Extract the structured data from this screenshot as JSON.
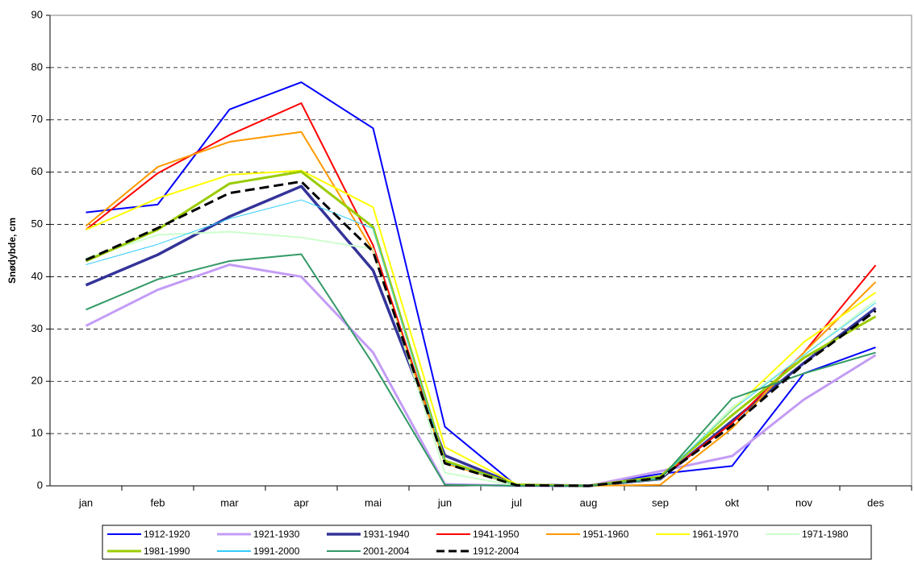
{
  "chart_data": {
    "type": "line",
    "y_label": "Snødybde, cm",
    "categories": [
      "jan",
      "feb",
      "mar",
      "apr",
      "mai",
      "jun",
      "jul",
      "aug",
      "sep",
      "okt",
      "nov",
      "des"
    ],
    "ylim": [
      0,
      90
    ],
    "yticks": [
      0,
      10,
      20,
      30,
      40,
      50,
      60,
      70,
      80,
      90
    ],
    "grid": true,
    "series": [
      {
        "name": "1912-1920",
        "color": "#0000ff",
        "width": 2,
        "values": [
          52.3,
          53.8,
          72,
          77.2,
          68.4,
          11.3,
          0,
          0,
          2.3,
          3.8,
          21.5,
          26.5
        ]
      },
      {
        "name": "1921-1930",
        "color": "#c39cf5",
        "width": 3,
        "values": [
          30.6,
          37.5,
          42.3,
          40,
          25.5,
          0.3,
          0,
          0,
          2.8,
          5.7,
          16.5,
          25
        ]
      },
      {
        "name": "1931-1940",
        "color": "#333399",
        "width": 3.5,
        "values": [
          38.4,
          44.2,
          51.5,
          57.3,
          41.2,
          5.8,
          0.2,
          0,
          1.3,
          12.4,
          23.5,
          34
        ]
      },
      {
        "name": "1941-1950",
        "color": "#ff0000",
        "width": 2,
        "values": [
          49,
          59.8,
          67.1,
          73.2,
          46,
          4.5,
          0.2,
          0,
          1.5,
          12,
          25.5,
          42.2
        ]
      },
      {
        "name": "1951-1960",
        "color": "#ff9900",
        "width": 2,
        "values": [
          49.7,
          61,
          65.8,
          67.7,
          45,
          4.3,
          0.1,
          0,
          0.2,
          11,
          25.5,
          39
        ]
      },
      {
        "name": "1961-1970",
        "color": "#ffff00",
        "width": 2,
        "values": [
          49,
          55,
          59.5,
          60.3,
          53.3,
          7.4,
          0.3,
          0,
          1.3,
          14.5,
          27.5,
          37
        ]
      },
      {
        "name": "1971-1980",
        "color": "#ccffcc",
        "width": 2,
        "values": [
          43.5,
          48,
          48.6,
          47.5,
          45.3,
          2.5,
          0,
          0,
          1.3,
          15,
          25,
          35.5
        ]
      },
      {
        "name": "1981-1990",
        "color": "#99cc00",
        "width": 3,
        "values": [
          43,
          49,
          57.8,
          60.1,
          49.5,
          4.8,
          0.2,
          0,
          1.8,
          13.5,
          24.5,
          32.4
        ]
      },
      {
        "name": "1991-2000",
        "color": "#33ccff",
        "width": 1,
        "values": [
          42.3,
          46.2,
          51.1,
          54.7,
          49.2,
          4.5,
          0.1,
          0,
          1.5,
          14.5,
          25,
          35
        ]
      },
      {
        "name": "2001-2004",
        "color": "#339966",
        "width": 2,
        "values": [
          33.7,
          39.5,
          43,
          44.3,
          23.3,
          0.2,
          0,
          0,
          1.3,
          16.7,
          21.5,
          25.5
        ]
      },
      {
        "name": "1912-2004",
        "color": "#000000",
        "width": 3,
        "dash": true,
        "values": [
          43.2,
          49.3,
          56,
          58.2,
          44.8,
          4.3,
          0.1,
          0,
          1.5,
          11.5,
          23.3,
          33.5
        ]
      }
    ]
  }
}
